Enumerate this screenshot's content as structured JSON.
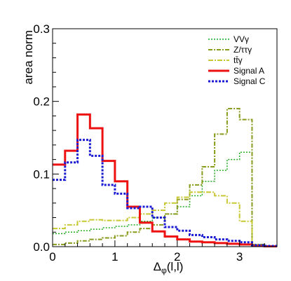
{
  "chart_data": {
    "type": "line",
    "style": "step-histogram",
    "title": "",
    "xlabel": "Δ_φ(l,l)",
    "xlabel_main": "Δ",
    "xlabel_sub": "φ",
    "xlabel_tail": "(l,l)",
    "ylabel": "area norm",
    "xlim": [
      0,
      3.6
    ],
    "ylim": [
      0,
      0.3
    ],
    "x_ticks": [
      0,
      1,
      2,
      3
    ],
    "x_tick_labels": [
      "0",
      "1",
      "2",
      "3"
    ],
    "y_ticks": [
      0,
      0.1,
      0.2,
      0.3
    ],
    "y_tick_labels": [
      "0.0",
      "0.1",
      "0.2",
      "0.3"
    ],
    "grid": false,
    "legend_position": "top-right",
    "bin_edges": [
      0.0,
      0.2,
      0.4,
      0.6,
      0.8,
      1.0,
      1.2,
      1.4,
      1.6,
      1.8,
      2.0,
      2.2,
      2.4,
      2.6,
      2.8,
      3.0,
      3.2,
      3.4,
      3.6
    ],
    "series": [
      {
        "name": "VVγ",
        "color": "#22aa22",
        "dash": "2,2",
        "width": 1.5,
        "values": [
          0.018,
          0.02,
          0.022,
          0.024,
          0.026,
          0.028,
          0.03,
          0.035,
          0.04,
          0.045,
          0.055,
          0.07,
          0.09,
          0.105,
          0.12,
          0.13,
          0.003,
          0.001
        ]
      },
      {
        "name": "Z/ττγ",
        "color": "#8a9a1a",
        "dash": "6,2,2,2",
        "width": 2,
        "values": [
          0.003,
          0.005,
          0.008,
          0.01,
          0.012,
          0.015,
          0.02,
          0.025,
          0.03,
          0.045,
          0.065,
          0.085,
          0.11,
          0.155,
          0.19,
          0.175,
          0.003,
          0.001
        ]
      },
      {
        "name": "tt̄γ",
        "color": "#c8c832",
        "dash": "7,2,2,2",
        "width": 2,
        "values": [
          0.025,
          0.03,
          0.035,
          0.037,
          0.036,
          0.036,
          0.04,
          0.045,
          0.05,
          0.06,
          0.068,
          0.075,
          0.075,
          0.07,
          0.06,
          0.035,
          0.002,
          0.001
        ]
      },
      {
        "name": "Signal A",
        "color": "#ee1111",
        "dash": "",
        "width": 3,
        "values": [
          0.113,
          0.132,
          0.182,
          0.163,
          0.118,
          0.09,
          0.055,
          0.033,
          0.021,
          0.014,
          0.01,
          0.007,
          0.006,
          0.005,
          0.004,
          0.003,
          0.001,
          0.0005
        ]
      },
      {
        "name": "Signal C",
        "color": "#1a1ad4",
        "dash": "3,2",
        "width": 3,
        "values": [
          0.092,
          0.116,
          0.147,
          0.125,
          0.085,
          0.073,
          0.053,
          0.055,
          0.04,
          0.027,
          0.022,
          0.016,
          0.013,
          0.01,
          0.008,
          0.006,
          0.002,
          0.001
        ]
      }
    ]
  }
}
